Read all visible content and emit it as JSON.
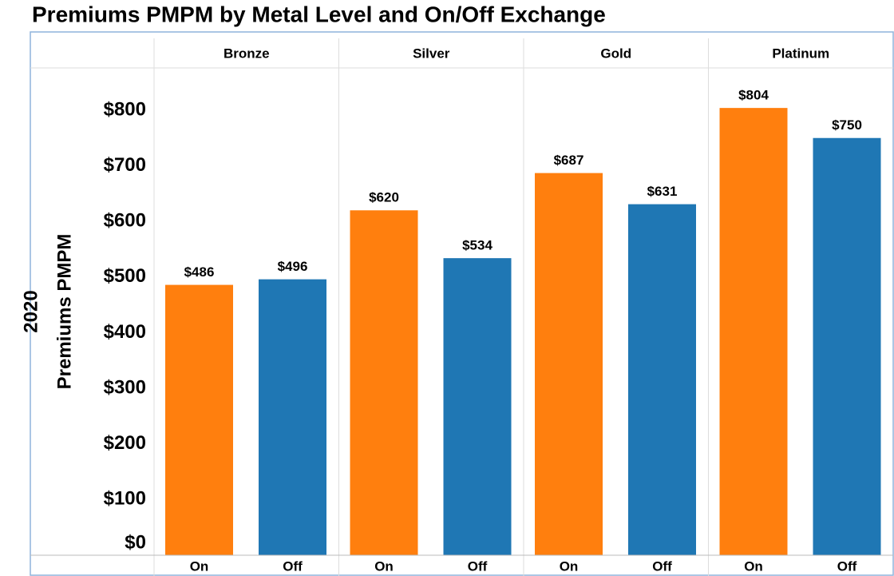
{
  "chart_data": {
    "type": "bar",
    "title": "Premiums PMPM by Metal Level and On/Off Exchange",
    "row_label": "2020",
    "y_axis_label": "Premiums PMPM",
    "categories": [
      "Bronze",
      "Silver",
      "Gold",
      "Platinum"
    ],
    "series": [
      {
        "name": "On",
        "color": "#ff7f0e",
        "values": [
          486,
          620,
          687,
          804
        ],
        "value_labels": [
          "$486",
          "$620",
          "$687",
          "$804"
        ]
      },
      {
        "name": "Off",
        "color": "#1f77b4",
        "values": [
          496,
          534,
          631,
          750
        ],
        "value_labels": [
          "$496",
          "$534",
          "$631",
          "$750"
        ]
      }
    ],
    "ylim": [
      0,
      876
    ],
    "yticks": [
      {
        "value": 0,
        "label": "$0"
      },
      {
        "value": 100,
        "label": "$100"
      },
      {
        "value": 200,
        "label": "$200"
      },
      {
        "value": 300,
        "label": "$300"
      },
      {
        "value": 400,
        "label": "$400"
      },
      {
        "value": 500,
        "label": "$500"
      },
      {
        "value": 600,
        "label": "$600"
      },
      {
        "value": 700,
        "label": "$700"
      },
      {
        "value": 800,
        "label": "$800"
      }
    ]
  }
}
